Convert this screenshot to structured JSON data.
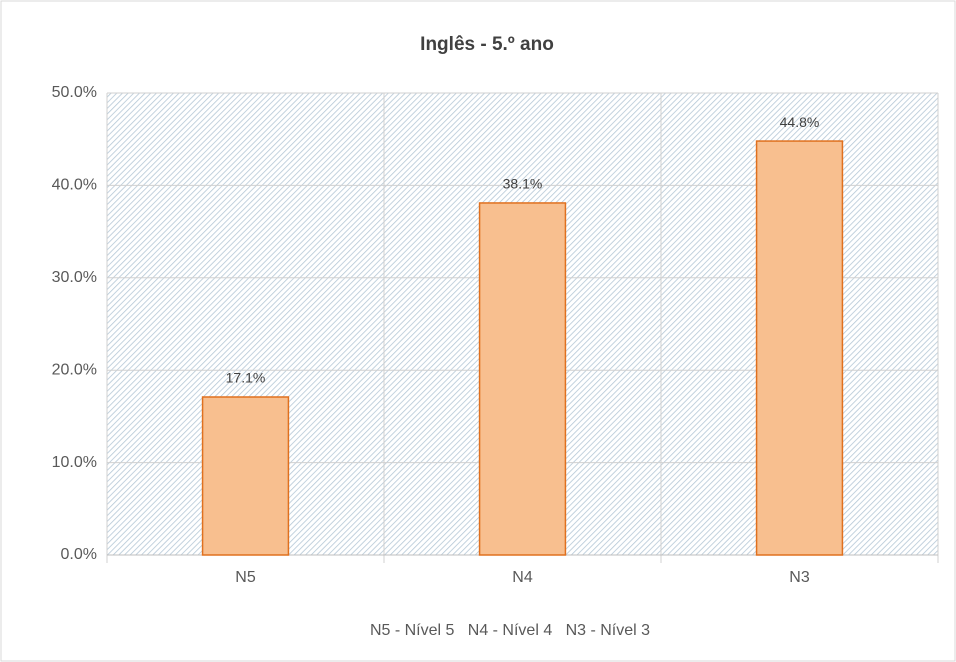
{
  "chart_data": {
    "type": "bar",
    "title": "Inglês - 5.º ano",
    "categories": [
      "N5",
      "N4",
      "N3"
    ],
    "values": [
      17.1,
      38.1,
      44.8
    ],
    "value_labels": [
      "17.1%",
      "38.1%",
      "44.8%"
    ],
    "color": "#f8bf8f",
    "edge_color": "#e0701e",
    "ylim": [
      0,
      50
    ],
    "yticks": [
      {
        "value": 0,
        "label": "0.0%"
      },
      {
        "value": 10,
        "label": "10.0%"
      },
      {
        "value": 20,
        "label": "20.0%"
      },
      {
        "value": 30,
        "label": "30.0%"
      },
      {
        "value": 40,
        "label": "40.0%"
      },
      {
        "value": 50,
        "label": "50.0%"
      }
    ],
    "grid": true,
    "xlabel": "N5 - Nível 5   N4 - Nível 4   N3 - Nível 3"
  }
}
